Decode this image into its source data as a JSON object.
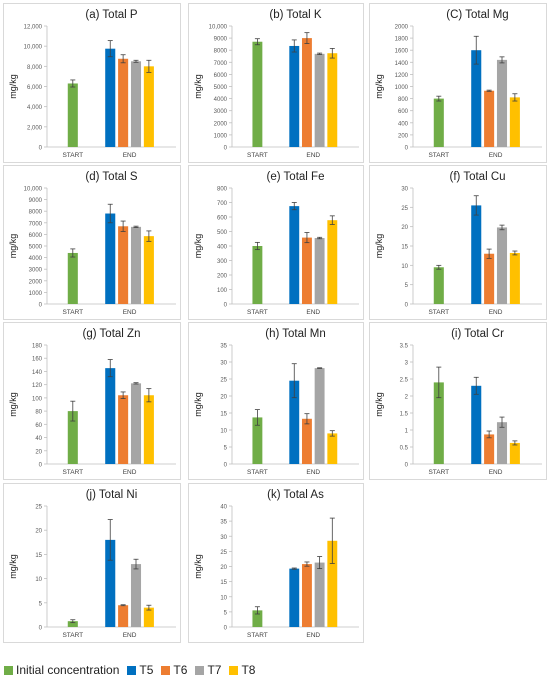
{
  "chart_data": [
    {
      "type": "bar",
      "title": "(a) Total P",
      "ylabel": "mg/kg",
      "categories": [
        "START",
        "END"
      ],
      "ylim": [
        0,
        12000
      ],
      "yticks": [
        0,
        2000,
        4000,
        6000,
        8000,
        10000,
        12000
      ],
      "ytick_labels": [
        "0",
        "2,000",
        "4,000",
        "6,000",
        "8,000",
        "10,000",
        "12,000"
      ],
      "series": [
        {
          "name": "Initial concentration",
          "values": [
            6300,
            null
          ],
          "errors": [
            350,
            null
          ]
        },
        {
          "name": "T5",
          "values": [
            null,
            9750
          ],
          "errors": [
            null,
            800
          ]
        },
        {
          "name": "T6",
          "values": [
            null,
            8750
          ],
          "errors": [
            null,
            400
          ]
        },
        {
          "name": "T7",
          "values": [
            null,
            8500
          ],
          "errors": [
            null,
            100
          ]
        },
        {
          "name": "T8",
          "values": [
            null,
            8000
          ],
          "errors": [
            null,
            600
          ]
        }
      ]
    },
    {
      "type": "bar",
      "title": "(b) Total K",
      "ylabel": "mg/kg",
      "categories": [
        "START",
        "END"
      ],
      "ylim": [
        0,
        10000
      ],
      "yticks": [
        0,
        1000,
        2000,
        3000,
        4000,
        5000,
        6000,
        7000,
        8000,
        9000,
        10000
      ],
      "ytick_labels": [
        "0",
        "1000",
        "2000",
        "3000",
        "4000",
        "5000",
        "6000",
        "7000",
        "8000",
        "9000",
        "10,000"
      ],
      "series": [
        {
          "name": "Initial concentration",
          "values": [
            8700,
            null
          ],
          "errors": [
            250,
            null
          ]
        },
        {
          "name": "T5",
          "values": [
            null,
            8350
          ],
          "errors": [
            null,
            500
          ]
        },
        {
          "name": "T6",
          "values": [
            null,
            9000
          ],
          "errors": [
            null,
            450
          ]
        },
        {
          "name": "T7",
          "values": [
            null,
            7700
          ],
          "errors": [
            null,
            60
          ]
        },
        {
          "name": "T8",
          "values": [
            null,
            7750
          ],
          "errors": [
            null,
            400
          ]
        }
      ]
    },
    {
      "type": "bar",
      "title": "(C) Total Mg",
      "ylabel": "mg/kg",
      "categories": [
        "START",
        "END"
      ],
      "ylim": [
        0,
        2000
      ],
      "yticks": [
        0,
        200,
        400,
        600,
        800,
        1000,
        1200,
        1400,
        1600,
        1800,
        2000
      ],
      "ytick_labels": [
        "0",
        "200",
        "400",
        "600",
        "800",
        "1000",
        "1200",
        "1400",
        "1600",
        "1800",
        "2000"
      ],
      "series": [
        {
          "name": "Initial concentration",
          "values": [
            800,
            null
          ],
          "errors": [
            40,
            null
          ]
        },
        {
          "name": "T5",
          "values": [
            null,
            1600
          ],
          "errors": [
            null,
            230
          ]
        },
        {
          "name": "T6",
          "values": [
            null,
            930
          ],
          "errors": [
            null,
            10
          ]
        },
        {
          "name": "T7",
          "values": [
            null,
            1440
          ],
          "errors": [
            null,
            50
          ]
        },
        {
          "name": "T8",
          "values": [
            null,
            820
          ],
          "errors": [
            null,
            60
          ]
        }
      ]
    },
    {
      "type": "bar",
      "title": "(d) Total S",
      "ylabel": "mg/kg",
      "categories": [
        "START",
        "END"
      ],
      "ylim": [
        0,
        10000
      ],
      "yticks": [
        0,
        1000,
        2000,
        3000,
        4000,
        5000,
        6000,
        7000,
        8000,
        9000,
        10000
      ],
      "ytick_labels": [
        "0",
        "1000",
        "2000",
        "3000",
        "4000",
        "5000",
        "6000",
        "7000",
        "8000",
        "9000",
        "10,000"
      ],
      "series": [
        {
          "name": "Initial concentration",
          "values": [
            4400,
            null
          ],
          "errors": [
            350,
            null
          ]
        },
        {
          "name": "T5",
          "values": [
            null,
            7800
          ],
          "errors": [
            null,
            800
          ]
        },
        {
          "name": "T6",
          "values": [
            null,
            6700
          ],
          "errors": [
            null,
            450
          ]
        },
        {
          "name": "T7",
          "values": [
            null,
            6650
          ],
          "errors": [
            null,
            60
          ]
        },
        {
          "name": "T8",
          "values": [
            null,
            5850
          ],
          "errors": [
            null,
            450
          ]
        }
      ]
    },
    {
      "type": "bar",
      "title": "(e) Total Fe",
      "ylabel": "mg/kg",
      "categories": [
        "START",
        "END"
      ],
      "ylim": [
        0,
        800
      ],
      "yticks": [
        0,
        100,
        200,
        300,
        400,
        500,
        600,
        700,
        800
      ],
      "ytick_labels": [
        "0",
        "100",
        "200",
        "300",
        "400",
        "500",
        "600",
        "700",
        "800"
      ],
      "series": [
        {
          "name": "Initial concentration",
          "values": [
            400,
            null
          ],
          "errors": [
            25,
            null
          ]
        },
        {
          "name": "T5",
          "values": [
            null,
            675
          ],
          "errors": [
            null,
            25
          ]
        },
        {
          "name": "T6",
          "values": [
            null,
            458
          ],
          "errors": [
            null,
            35
          ]
        },
        {
          "name": "T7",
          "values": [
            null,
            455
          ],
          "errors": [
            null,
            5
          ]
        },
        {
          "name": "T8",
          "values": [
            null,
            578
          ],
          "errors": [
            null,
            30
          ]
        }
      ]
    },
    {
      "type": "bar",
      "title": "(f) Total Cu",
      "ylabel": "mg/kg",
      "categories": [
        "START",
        "END"
      ],
      "ylim": [
        0,
        30
      ],
      "yticks": [
        0,
        5,
        10,
        15,
        20,
        25,
        30
      ],
      "ytick_labels": [
        "0",
        "5",
        "10",
        "15",
        "20",
        "25",
        "30"
      ],
      "series": [
        {
          "name": "Initial concentration",
          "values": [
            9.5,
            null
          ],
          "errors": [
            0.5,
            null
          ]
        },
        {
          "name": "T5",
          "values": [
            null,
            25.5
          ],
          "errors": [
            null,
            2.5
          ]
        },
        {
          "name": "T6",
          "values": [
            null,
            13
          ],
          "errors": [
            null,
            1.2
          ]
        },
        {
          "name": "T7",
          "values": [
            null,
            19.8
          ],
          "errors": [
            null,
            0.6
          ]
        },
        {
          "name": "T8",
          "values": [
            null,
            13.2
          ],
          "errors": [
            null,
            0.5
          ]
        }
      ]
    },
    {
      "type": "bar",
      "title": "(g) Total Zn",
      "ylabel": "mg/kg",
      "categories": [
        "START",
        "END"
      ],
      "ylim": [
        0,
        180
      ],
      "yticks": [
        0,
        20,
        40,
        60,
        80,
        100,
        120,
        140,
        160,
        180
      ],
      "ytick_labels": [
        "0",
        "20",
        "40",
        "60",
        "80",
        "100",
        "120",
        "140",
        "160",
        "180"
      ],
      "series": [
        {
          "name": "Initial concentration",
          "values": [
            80,
            null
          ],
          "errors": [
            15,
            null
          ]
        },
        {
          "name": "T5",
          "values": [
            null,
            145
          ],
          "errors": [
            null,
            13
          ]
        },
        {
          "name": "T6",
          "values": [
            null,
            104
          ],
          "errors": [
            null,
            5
          ]
        },
        {
          "name": "T7",
          "values": [
            null,
            122
          ],
          "errors": [
            null,
            1
          ]
        },
        {
          "name": "T8",
          "values": [
            null,
            104
          ],
          "errors": [
            null,
            10
          ]
        }
      ]
    },
    {
      "type": "bar",
      "title": "(h) Total Mn",
      "ylabel": "mg/kg",
      "categories": [
        "START",
        "END"
      ],
      "ylim": [
        0,
        35
      ],
      "yticks": [
        0,
        5,
        10,
        15,
        20,
        25,
        30,
        35
      ],
      "ytick_labels": [
        "0",
        "5",
        "10",
        "15",
        "20",
        "25",
        "30",
        "35"
      ],
      "series": [
        {
          "name": "Initial concentration",
          "values": [
            13.7,
            null
          ],
          "errors": [
            2.3,
            null
          ]
        },
        {
          "name": "T5",
          "values": [
            null,
            24.5
          ],
          "errors": [
            null,
            5
          ]
        },
        {
          "name": "T6",
          "values": [
            null,
            13.3
          ],
          "errors": [
            null,
            1.5
          ]
        },
        {
          "name": "T7",
          "values": [
            null,
            28.2
          ],
          "errors": [
            null,
            0.1
          ]
        },
        {
          "name": "T8",
          "values": [
            null,
            9
          ],
          "errors": [
            null,
            0.8
          ]
        }
      ]
    },
    {
      "type": "bar",
      "title": "(i) Total Cr",
      "ylabel": "mg/kg",
      "categories": [
        "START",
        "END"
      ],
      "ylim": [
        0,
        3.5
      ],
      "yticks": [
        0,
        0.5,
        1,
        1.5,
        2,
        2.5,
        3,
        3.5
      ],
      "ytick_labels": [
        "0",
        "0.5",
        "1",
        "1.5",
        "2",
        "2.5",
        "3",
        "3.5"
      ],
      "series": [
        {
          "name": "Initial concentration",
          "values": [
            2.4,
            null
          ],
          "errors": [
            0.45,
            null
          ]
        },
        {
          "name": "T5",
          "values": [
            null,
            2.3
          ],
          "errors": [
            null,
            0.25
          ]
        },
        {
          "name": "T6",
          "values": [
            null,
            0.87
          ],
          "errors": [
            null,
            0.1
          ]
        },
        {
          "name": "T7",
          "values": [
            null,
            1.23
          ],
          "errors": [
            null,
            0.15
          ]
        },
        {
          "name": "T8",
          "values": [
            null,
            0.62
          ],
          "errors": [
            null,
            0.06
          ]
        }
      ]
    },
    {
      "type": "bar",
      "title": "(j) Total Ni",
      "ylabel": "mg/kg",
      "categories": [
        "START",
        "END"
      ],
      "ylim": [
        0,
        25
      ],
      "yticks": [
        0,
        5,
        10,
        15,
        20,
        25
      ],
      "ytick_labels": [
        "0",
        "5",
        "10",
        "15",
        "20",
        "25"
      ],
      "series": [
        {
          "name": "Initial concentration",
          "values": [
            1.2,
            null
          ],
          "errors": [
            0.3,
            null
          ]
        },
        {
          "name": "T5",
          "values": [
            null,
            18
          ],
          "errors": [
            null,
            4.2
          ]
        },
        {
          "name": "T6",
          "values": [
            null,
            4.5
          ],
          "errors": [
            null,
            0.1
          ]
        },
        {
          "name": "T7",
          "values": [
            null,
            13
          ],
          "errors": [
            null,
            1
          ]
        },
        {
          "name": "T8",
          "values": [
            null,
            4
          ],
          "errors": [
            null,
            0.5
          ]
        }
      ]
    },
    {
      "type": "bar",
      "title": "(k) Total As",
      "ylabel": "mg/kg",
      "categories": [
        "START",
        "END"
      ],
      "ylim": [
        0,
        40
      ],
      "yticks": [
        0,
        5,
        10,
        15,
        20,
        25,
        30,
        35,
        40
      ],
      "ytick_labels": [
        "0",
        "5",
        "10",
        "15",
        "20",
        "25",
        "30",
        "35",
        "40"
      ],
      "series": [
        {
          "name": "Initial concentration",
          "values": [
            5.5,
            null
          ],
          "errors": [
            1.2,
            null
          ]
        },
        {
          "name": "T5",
          "values": [
            null,
            19.3
          ],
          "errors": [
            null,
            0.2
          ]
        },
        {
          "name": "T6",
          "values": [
            null,
            20.8
          ],
          "errors": [
            null,
            0.7
          ]
        },
        {
          "name": "T7",
          "values": [
            null,
            21.3
          ],
          "errors": [
            null,
            2
          ]
        },
        {
          "name": "T8",
          "values": [
            null,
            28.5
          ],
          "errors": [
            null,
            7.5
          ]
        }
      ]
    }
  ],
  "legend": [
    {
      "label": "Initial concentration",
      "color": "#70ad47"
    },
    {
      "label": "T5",
      "color": "#0070c0"
    },
    {
      "label": "T6",
      "color": "#ed7d31"
    },
    {
      "label": "T7",
      "color": "#a5a5a5"
    },
    {
      "label": "T8",
      "color": "#ffc000"
    }
  ]
}
